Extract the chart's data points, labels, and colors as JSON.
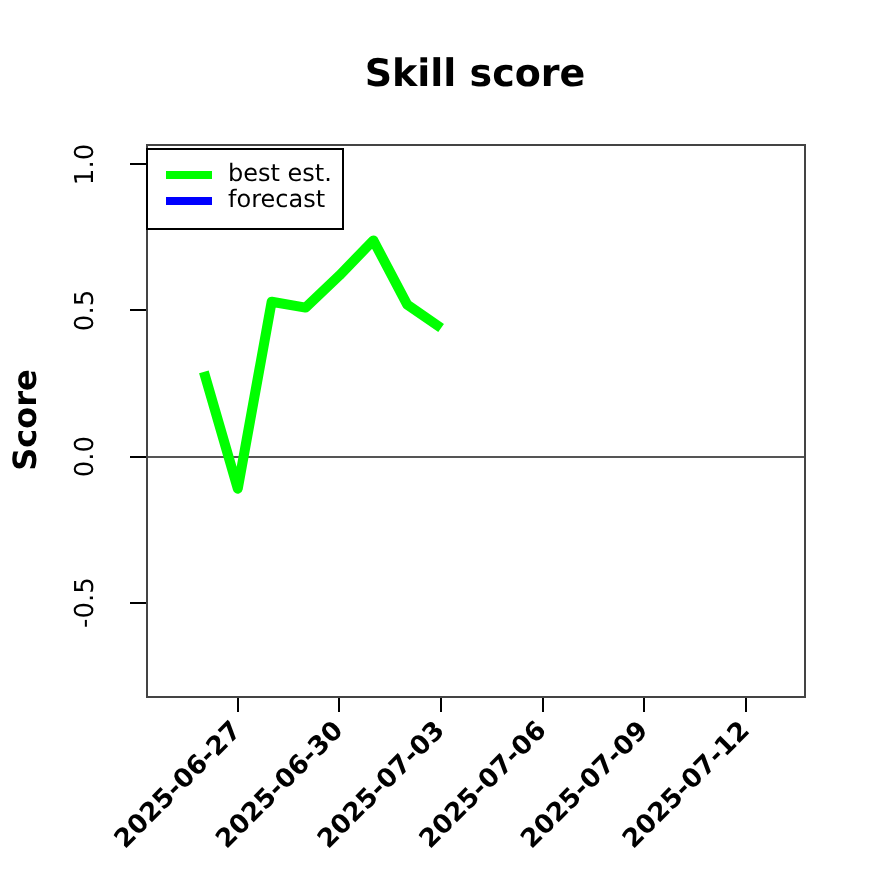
{
  "chart_data": {
    "type": "line",
    "title": "Skill score",
    "ylabel": "Score",
    "xlim": [
      "2025-06-24T07:00",
      "2025-07-13T17:00"
    ],
    "xticks": [
      "2025-06-27",
      "2025-06-30",
      "2025-07-03",
      "2025-07-06",
      "2025-07-09",
      "2025-07-12"
    ],
    "ylim": [
      -0.82,
      1.07
    ],
    "yticks": [
      -0.5,
      {
        "value": 0,
        "label": "0.0"
      },
      0.5,
      {
        "value": 1,
        "label": "1.0"
      }
    ],
    "legend": "top left",
    "marker": "none",
    "line_style": "solid",
    "series": [
      {
        "name": "best est.",
        "color": "#00ff00",
        "x": [
          "2025-06-26",
          "2025-06-27",
          "2025-06-28",
          "2025-06-29",
          "2025-06-30",
          "2025-07-01",
          "2025-07-02",
          "2025-07-03"
        ],
        "values": [
          0.29,
          -0.11,
          0.53,
          0.51,
          0.62,
          0.74,
          0.52,
          0.44
        ]
      },
      {
        "name": "forecast",
        "color": "#0000ff"
      }
    ],
    "ref_lines": [
      {
        "axis": "y",
        "value": 0,
        "color": "#555555"
      }
    ]
  }
}
